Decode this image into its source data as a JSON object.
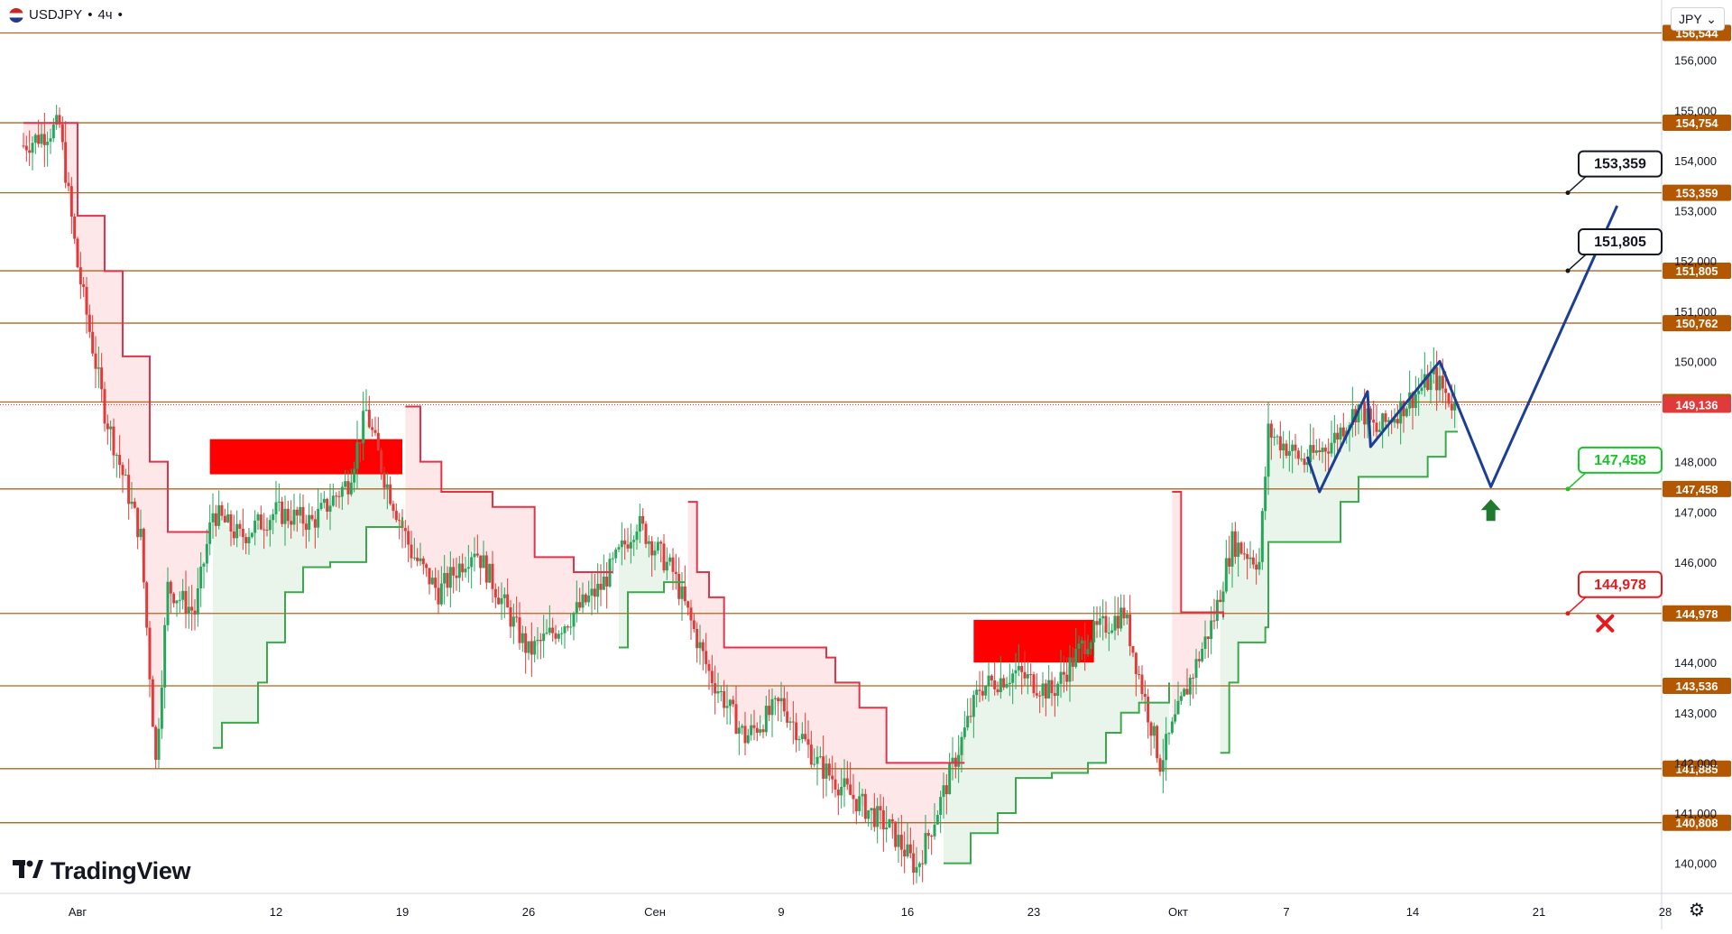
{
  "header": {
    "symbol": "USDJPY",
    "timeframe": "4ч",
    "separator": "•"
  },
  "currency_select": {
    "value": "JPY",
    "icon": "chevron-down-icon"
  },
  "branding": {
    "logo_text": "TradingView",
    "logo_icon": "tradingview-logo-icon"
  },
  "settings_icon": "gear-icon",
  "colors": {
    "level_line": "#b5651d",
    "level_tag": "#b35700",
    "price_tag": "#e03b3b",
    "bull": "#26a65b",
    "bear": "#e03b3b",
    "projection": "#1c3f94",
    "supertrend_up": "#3aa94a",
    "supertrend_down": "#e0344a"
  },
  "chart_data": {
    "type": "candlestick",
    "symbol": "USDJPY",
    "ylim": [
      139.4,
      157.2
    ],
    "x_ticks": [
      {
        "label": "Авг",
        "date": "2024-08-01"
      },
      {
        "label": "12",
        "date": "2024-08-12"
      },
      {
        "label": "19",
        "date": "2024-08-19"
      },
      {
        "label": "26",
        "date": "2024-08-26"
      },
      {
        "label": "Сен",
        "date": "2024-09-02"
      },
      {
        "label": "9",
        "date": "2024-09-09"
      },
      {
        "label": "16",
        "date": "2024-09-16"
      },
      {
        "label": "23",
        "date": "2024-09-23"
      },
      {
        "label": "Окт",
        "date": "2024-10-01"
      },
      {
        "label": "7",
        "date": "2024-10-07"
      },
      {
        "label": "14",
        "date": "2024-10-14"
      },
      {
        "label": "21",
        "date": "2024-10-21"
      },
      {
        "label": "28",
        "date": "2024-10-28"
      }
    ],
    "y_ticks": [
      "156,000",
      "155,000",
      "154,000",
      "153,000",
      "152,000",
      "151,000",
      "150,000",
      "148,000",
      "147,000",
      "146,000",
      "144,000",
      "143,000",
      "142,000",
      "141,000",
      "140,000"
    ],
    "y_tick_values": [
      156,
      155,
      154,
      153,
      152,
      151,
      150,
      148,
      147,
      146,
      144,
      143,
      142,
      141,
      140
    ],
    "levels": [
      {
        "value": 156.544,
        "label": "156,544"
      },
      {
        "value": 154.754,
        "label": "154,754"
      },
      {
        "value": 153.359,
        "label": "153,359"
      },
      {
        "value": 151.805,
        "label": "151,805"
      },
      {
        "value": 150.762,
        "label": "150,762"
      },
      {
        "value": 149.19,
        "label": "149,190"
      },
      {
        "value": 147.458,
        "label": "147,458"
      },
      {
        "value": 144.978,
        "label": "144,978"
      },
      {
        "value": 143.536,
        "label": "143,536"
      },
      {
        "value": 141.885,
        "label": "141,885"
      },
      {
        "value": 140.808,
        "label": "140,808"
      }
    ],
    "current_price": {
      "value": 149.136,
      "label": "149,136"
    },
    "callouts": [
      {
        "label": "153,359",
        "value": 153.359,
        "color": "#131722"
      },
      {
        "label": "151,805",
        "value": 151.805,
        "color": "#131722"
      },
      {
        "label": "147,458",
        "value": 147.458,
        "color": "#19c42a"
      },
      {
        "label": "144,978",
        "value": 144.978,
        "color": "#e8191d"
      }
    ],
    "zones": [
      {
        "from": "2024-08-08T08:00",
        "to": "2024-08-19T00:00",
        "top": 148.45,
        "bottom": 147.75,
        "color": "#ff0000"
      },
      {
        "from": "2024-09-19T16:00",
        "to": "2024-09-26T08:00",
        "top": 144.85,
        "bottom": 144.0,
        "color": "#ff0000"
      }
    ],
    "projection": [
      {
        "date": "2024-10-08T04:00",
        "value": 148.1
      },
      {
        "date": "2024-10-08T20:00",
        "value": 147.4
      },
      {
        "date": "2024-10-11T12:00",
        "value": 149.4
      },
      {
        "date": "2024-10-11T16:00",
        "value": 148.3
      },
      {
        "date": "2024-10-15T12:00",
        "value": 150.0
      },
      {
        "date": "2024-10-18T08:00",
        "value": 147.5
      },
      {
        "date": "2024-10-25T08:00",
        "value": 153.1
      }
    ],
    "markers": [
      {
        "type": "arrow-up",
        "date": "2024-10-18T08:00",
        "value": 147.0,
        "color": "#1f7a2e"
      },
      {
        "type": "cross",
        "date": "2024-10-24T16:00",
        "value": 144.78,
        "color": "#e8191d"
      }
    ],
    "supertrend": [
      {
        "date": "2024-07-29T00:00",
        "value": 154.75,
        "dir": "down"
      },
      {
        "date": "2024-08-01T00:00",
        "value": 152.9,
        "dir": "down"
      },
      {
        "date": "2024-08-02T12:00",
        "value": 151.8,
        "dir": "down"
      },
      {
        "date": "2024-08-03T12:00",
        "value": 150.1,
        "dir": "down"
      },
      {
        "date": "2024-08-05T00:00",
        "value": 148.0,
        "dir": "down"
      },
      {
        "date": "2024-08-06T00:00",
        "value": 146.6,
        "dir": "down"
      },
      {
        "date": "2024-08-08T08:00",
        "value": 146.6,
        "dir": "down"
      },
      {
        "date": "2024-08-08T12:00",
        "value": 142.3,
        "dir": "up"
      },
      {
        "date": "2024-08-09T00:00",
        "value": 142.8,
        "dir": "up"
      },
      {
        "date": "2024-08-11T00:00",
        "value": 143.6,
        "dir": "up"
      },
      {
        "date": "2024-08-11T12:00",
        "value": 144.4,
        "dir": "up"
      },
      {
        "date": "2024-08-12T12:00",
        "value": 145.4,
        "dir": "up"
      },
      {
        "date": "2024-08-13T12:00",
        "value": 145.9,
        "dir": "up"
      },
      {
        "date": "2024-08-15T00:00",
        "value": 146.0,
        "dir": "up"
      },
      {
        "date": "2024-08-17T00:00",
        "value": 146.7,
        "dir": "up"
      },
      {
        "date": "2024-08-19T00:00",
        "value": 146.9,
        "dir": "up"
      },
      {
        "date": "2024-08-19T04:00",
        "value": 149.1,
        "dir": "down"
      },
      {
        "date": "2024-08-20T00:00",
        "value": 148.0,
        "dir": "down"
      },
      {
        "date": "2024-08-21T04:00",
        "value": 147.4,
        "dir": "down"
      },
      {
        "date": "2024-08-24T00:00",
        "value": 147.1,
        "dir": "down"
      },
      {
        "date": "2024-08-26T08:00",
        "value": 146.1,
        "dir": "down"
      },
      {
        "date": "2024-08-28T12:00",
        "value": 145.8,
        "dir": "down"
      },
      {
        "date": "2024-08-30T16:00",
        "value": 145.8,
        "dir": "down"
      },
      {
        "date": "2024-08-31T00:00",
        "value": 144.3,
        "dir": "up"
      },
      {
        "date": "2024-08-31T12:00",
        "value": 145.4,
        "dir": "up"
      },
      {
        "date": "2024-09-02T12:00",
        "value": 145.6,
        "dir": "up"
      },
      {
        "date": "2024-09-03T16:00",
        "value": 145.6,
        "dir": "up"
      },
      {
        "date": "2024-09-03T20:00",
        "value": 147.2,
        "dir": "down"
      },
      {
        "date": "2024-09-04T08:00",
        "value": 145.8,
        "dir": "down"
      },
      {
        "date": "2024-09-05T00:00",
        "value": 145.3,
        "dir": "down"
      },
      {
        "date": "2024-09-05T20:00",
        "value": 144.3,
        "dir": "down"
      },
      {
        "date": "2024-09-11T12:00",
        "value": 144.1,
        "dir": "down"
      },
      {
        "date": "2024-09-12T00:00",
        "value": 143.6,
        "dir": "down"
      },
      {
        "date": "2024-09-13T08:00",
        "value": 143.1,
        "dir": "down"
      },
      {
        "date": "2024-09-14T20:00",
        "value": 142.0,
        "dir": "down"
      },
      {
        "date": "2024-09-19T04:00",
        "value": 142.0,
        "dir": "down"
      },
      {
        "date": "2024-09-18T00:00",
        "value": 140.0,
        "dir": "up"
      },
      {
        "date": "2024-09-19T12:00",
        "value": 140.6,
        "dir": "up"
      },
      {
        "date": "2024-09-21T00:00",
        "value": 141.0,
        "dir": "up"
      },
      {
        "date": "2024-09-22T00:00",
        "value": 141.7,
        "dir": "up"
      },
      {
        "date": "2024-09-24T00:00",
        "value": 141.8,
        "dir": "up"
      },
      {
        "date": "2024-09-26T00:00",
        "value": 142.0,
        "dir": "up"
      },
      {
        "date": "2024-09-27T00:00",
        "value": 142.6,
        "dir": "up"
      },
      {
        "date": "2024-09-27T20:00",
        "value": 143.0,
        "dir": "up"
      },
      {
        "date": "2024-09-28T20:00",
        "value": 143.2,
        "dir": "up"
      },
      {
        "date": "2024-09-30T12:00",
        "value": 143.6,
        "dir": "up"
      },
      {
        "date": "2024-09-30T16:00",
        "value": 147.4,
        "dir": "down"
      },
      {
        "date": "2024-10-01T04:00",
        "value": 145.0,
        "dir": "down"
      },
      {
        "date": "2024-10-03T12:00",
        "value": 144.9,
        "dir": "down"
      },
      {
        "date": "2024-10-03T08:00",
        "value": 142.2,
        "dir": "up"
      },
      {
        "date": "2024-10-03T20:00",
        "value": 143.6,
        "dir": "up"
      },
      {
        "date": "2024-10-04T08:00",
        "value": 144.4,
        "dir": "up"
      },
      {
        "date": "2024-10-05T20:00",
        "value": 144.7,
        "dir": "up"
      },
      {
        "date": "2024-10-06T00:00",
        "value": 146.4,
        "dir": "up"
      },
      {
        "date": "2024-10-09T08:00",
        "value": 146.4,
        "dir": "up"
      },
      {
        "date": "2024-10-10T00:00",
        "value": 147.2,
        "dir": "up"
      },
      {
        "date": "2024-10-11T00:00",
        "value": 147.7,
        "dir": "up"
      },
      {
        "date": "2024-10-14T00:00",
        "value": 147.7,
        "dir": "up"
      },
      {
        "date": "2024-10-14T20:00",
        "value": 148.1,
        "dir": "up"
      },
      {
        "date": "2024-10-15T20:00",
        "value": 148.6,
        "dir": "up"
      },
      {
        "date": "2024-10-16T12:00",
        "value": 148.6,
        "dir": "up"
      }
    ],
    "candles_summary": [
      {
        "date": "2024-07-29T00:00",
        "value": 154.3
      },
      {
        "date": "2024-07-31T00:00",
        "value": 154.7
      },
      {
        "date": "2024-08-01T00:00",
        "value": 151.9
      },
      {
        "date": "2024-08-02T12:00",
        "value": 149.0
      },
      {
        "date": "2024-08-04T12:00",
        "value": 146.5
      },
      {
        "date": "2024-08-05T08:00",
        "value": 142.0
      },
      {
        "date": "2024-08-06T00:00",
        "value": 145.5
      },
      {
        "date": "2024-08-07T12:00",
        "value": 145.0
      },
      {
        "date": "2024-08-08T12:00",
        "value": 147.0
      },
      {
        "date": "2024-08-10T00:00",
        "value": 146.5
      },
      {
        "date": "2024-08-12T00:00",
        "value": 147.0
      },
      {
        "date": "2024-08-14T00:00",
        "value": 146.8
      },
      {
        "date": "2024-08-16T00:00",
        "value": 147.6
      },
      {
        "date": "2024-08-17T00:00",
        "value": 149.0
      },
      {
        "date": "2024-08-18T00:00",
        "value": 147.7
      },
      {
        "date": "2024-08-19T12:00",
        "value": 146.2
      },
      {
        "date": "2024-08-21T00:00",
        "value": 145.4
      },
      {
        "date": "2024-08-23T00:00",
        "value": 146.3
      },
      {
        "date": "2024-08-26T00:00",
        "value": 144.2
      },
      {
        "date": "2024-08-28T00:00",
        "value": 144.8
      },
      {
        "date": "2024-08-30T00:00",
        "value": 145.5
      },
      {
        "date": "2024-09-01T00:00",
        "value": 146.8
      },
      {
        "date": "2024-09-03T00:00",
        "value": 145.8
      },
      {
        "date": "2024-09-05T00:00",
        "value": 143.8
      },
      {
        "date": "2024-09-07T00:00",
        "value": 142.5
      },
      {
        "date": "2024-09-09T00:00",
        "value": 143.2
      },
      {
        "date": "2024-09-11T00:00",
        "value": 142.0
      },
      {
        "date": "2024-09-13T00:00",
        "value": 141.3
      },
      {
        "date": "2024-09-15T00:00",
        "value": 140.7
      },
      {
        "date": "2024-09-16T12:00",
        "value": 139.9
      },
      {
        "date": "2024-09-18T00:00",
        "value": 141.4
      },
      {
        "date": "2024-09-20T00:00",
        "value": 143.5
      },
      {
        "date": "2024-09-22T00:00",
        "value": 143.8
      },
      {
        "date": "2024-09-24T00:00",
        "value": 143.4
      },
      {
        "date": "2024-09-26T00:00",
        "value": 144.5
      },
      {
        "date": "2024-09-28T00:00",
        "value": 145.0
      },
      {
        "date": "2024-09-30T00:00",
        "value": 142.0
      },
      {
        "date": "2024-10-01T12:00",
        "value": 143.5
      },
      {
        "date": "2024-10-03T00:00",
        "value": 144.9
      },
      {
        "date": "2024-10-04T00:00",
        "value": 146.4
      },
      {
        "date": "2024-10-05T12:00",
        "value": 146.0
      },
      {
        "date": "2024-10-06T00:00",
        "value": 148.6
      },
      {
        "date": "2024-10-08T00:00",
        "value": 148.0
      },
      {
        "date": "2024-10-09T12:00",
        "value": 148.4
      },
      {
        "date": "2024-10-11T00:00",
        "value": 149.1
      },
      {
        "date": "2024-10-12T00:00",
        "value": 148.6
      },
      {
        "date": "2024-10-14T00:00",
        "value": 149.3
      },
      {
        "date": "2024-10-15T04:00",
        "value": 149.7
      },
      {
        "date": "2024-10-16T08:00",
        "value": 149.1
      }
    ]
  }
}
